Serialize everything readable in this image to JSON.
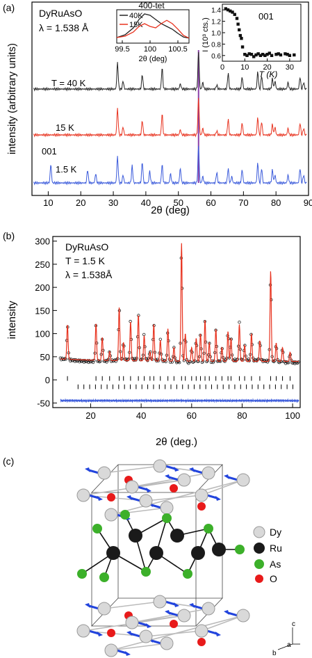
{
  "panel_a": {
    "label": "(a)",
    "compound": "DyRuAsO",
    "wavelength": "λ = 1.538 Å",
    "ylabel": "intensity (arbitrary units)",
    "xlabel": "2θ (deg)",
    "temp_labels": {
      "t40": "T = 40 K",
      "t15": "15 K",
      "t1_5": "1.5 K"
    },
    "peak_label": "001",
    "inset_left": {
      "title": "400-tet",
      "xlabel": "2θ (deg)",
      "legend": [
        "40K",
        "15K"
      ]
    },
    "inset_right": {
      "ylabel": "I (10³ cts.)",
      "xlabel": "T (K)",
      "label": "001"
    }
  },
  "panel_b": {
    "label": "(b)",
    "compound": "DyRuAsO",
    "temperature": "T = 1.5 K",
    "wavelength": "λ = 1.538Å",
    "ylabel": "intensity",
    "xlabel": "2θ (deg.)"
  },
  "panel_c": {
    "label": "(c)",
    "legend": [
      "Dy",
      "Ru",
      "As",
      "O"
    ],
    "axes": [
      "c",
      "a",
      "b"
    ]
  },
  "colors": {
    "black": "#222222",
    "red": "#e8321e",
    "blue": "#3b5bdb",
    "purple": "#8a3fa8",
    "Dy": "#d9d9d9",
    "Ru": "#1a1a1a",
    "As": "#3cb02a",
    "O": "#e81a1a",
    "spin": "#2244dd"
  },
  "chart_data": [
    {
      "type": "line",
      "panel": "a-main",
      "xlabel": "2θ (deg)",
      "ylabel": "intensity (arbitrary units)",
      "xlim": [
        5,
        90
      ],
      "xticks": [
        10,
        20,
        30,
        40,
        50,
        60,
        70,
        80,
        90
      ],
      "series": [
        {
          "name": "T = 40 K",
          "color": "#222222",
          "peaks": [
            [
              31.3,
              1.0
            ],
            [
              33.0,
              0.3
            ],
            [
              38.9,
              0.55
            ],
            [
              45.0,
              0.8
            ],
            [
              50.6,
              0.2
            ],
            [
              56.2,
              1.4
            ],
            [
              57.5,
              0.25
            ],
            [
              61.8,
              0.15
            ],
            [
              65.3,
              0.6
            ],
            [
              69.6,
              0.45
            ],
            [
              74.4,
              0.65
            ],
            [
              75.6,
              0.5
            ],
            [
              78.9,
              0.4
            ],
            [
              79.7,
              0.3
            ],
            [
              83.7,
              0.25
            ],
            [
              87.4,
              0.45
            ],
            [
              88.5,
              0.25
            ]
          ]
        },
        {
          "name": "15 K",
          "color": "#e8321e",
          "peaks": [
            [
              31.3,
              1.0
            ],
            [
              33.0,
              0.3
            ],
            [
              38.9,
              0.55
            ],
            [
              45.0,
              0.8
            ],
            [
              50.6,
              0.2
            ],
            [
              56.2,
              1.4
            ],
            [
              57.5,
              0.25
            ],
            [
              61.8,
              0.15
            ],
            [
              65.3,
              0.6
            ],
            [
              69.6,
              0.45
            ],
            [
              74.4,
              0.65
            ],
            [
              75.6,
              0.5
            ],
            [
              78.9,
              0.4
            ],
            [
              79.7,
              0.3
            ],
            [
              83.7,
              0.25
            ],
            [
              87.4,
              0.45
            ],
            [
              88.5,
              0.25
            ]
          ]
        },
        {
          "name": "1.5 K",
          "color": "#3b5bdb",
          "peaks": [
            [
              10.8,
              0.7
            ],
            [
              22.1,
              0.5
            ],
            [
              24.6,
              0.35
            ],
            [
              31.3,
              1.0
            ],
            [
              33.0,
              0.3
            ],
            [
              35.8,
              0.65
            ],
            [
              38.9,
              0.8
            ],
            [
              41.2,
              0.45
            ],
            [
              45.0,
              0.7
            ],
            [
              47.6,
              0.35
            ],
            [
              50.6,
              0.55
            ],
            [
              56.2,
              1.4
            ],
            [
              57.5,
              0.25
            ],
            [
              61.8,
              0.4
            ],
            [
              65.3,
              0.55
            ],
            [
              66.4,
              0.25
            ],
            [
              69.6,
              0.5
            ],
            [
              74.4,
              0.75
            ],
            [
              75.6,
              0.55
            ],
            [
              78.9,
              0.5
            ],
            [
              79.7,
              0.3
            ],
            [
              83.7,
              0.3
            ],
            [
              87.4,
              0.55
            ],
            [
              88.5,
              0.3
            ]
          ]
        }
      ]
    },
    {
      "type": "line",
      "panel": "a-inset-400tet",
      "xlabel": "2θ (deg)",
      "xlim": [
        99.4,
        100.7
      ],
      "xticks": [
        99.5,
        100.0,
        100.5
      ],
      "series": [
        {
          "name": "40K",
          "color": "#222222",
          "x": [
            99.4,
            99.55,
            99.7,
            99.8,
            99.9,
            100.0,
            100.1,
            100.2,
            100.3,
            100.4,
            100.5,
            100.6,
            100.7
          ],
          "y": [
            0.1,
            0.2,
            0.45,
            0.75,
            0.95,
            0.9,
            0.75,
            0.6,
            0.5,
            0.4,
            0.25,
            0.12,
            0.08
          ]
        },
        {
          "name": "15K",
          "color": "#e8321e",
          "x": [
            99.4,
            99.55,
            99.7,
            99.8,
            99.9,
            100.0,
            100.1,
            100.2,
            100.3,
            100.4,
            100.5,
            100.6,
            100.7
          ],
          "y": [
            0.1,
            0.15,
            0.3,
            0.5,
            0.6,
            0.5,
            0.45,
            0.6,
            0.72,
            0.6,
            0.4,
            0.18,
            0.08
          ]
        }
      ]
    },
    {
      "type": "scatter",
      "panel": "a-inset-001",
      "xlabel": "T (K)",
      "ylabel": "I (10³ cts.)",
      "xlim": [
        0,
        35
      ],
      "ylim": [
        0.5,
        1.5
      ],
      "xticks": [
        0,
        10,
        20,
        30
      ],
      "yticks": [
        0.6,
        0.8,
        1.0,
        1.2,
        1.4
      ],
      "x": [
        1.5,
        2.5,
        3.5,
        4.5,
        5.5,
        6.5,
        7.0,
        7.5,
        8.0,
        8.5,
        9.0,
        10,
        11,
        12,
        13,
        14,
        15,
        16,
        17,
        18,
        19,
        20,
        21,
        22,
        24,
        25,
        26,
        28,
        29,
        30,
        32
      ],
      "y": [
        1.42,
        1.4,
        1.38,
        1.36,
        1.32,
        1.25,
        1.15,
        1.05,
        0.95,
        0.9,
        0.75,
        0.62,
        0.6,
        0.63,
        0.62,
        0.58,
        0.61,
        0.63,
        0.6,
        0.62,
        0.6,
        0.62,
        0.64,
        0.6,
        0.62,
        0.63,
        0.61,
        0.63,
        0.62,
        0.6,
        0.61
      ]
    },
    {
      "type": "line",
      "panel": "b",
      "xlabel": "2θ (deg.)",
      "ylabel": "intensity",
      "xlim": [
        5,
        103
      ],
      "ylim": [
        -60,
        310
      ],
      "xticks": [
        20,
        40,
        60,
        80,
        100
      ],
      "yticks": [
        -50,
        0,
        50,
        100,
        150,
        200,
        250,
        300
      ],
      "background": 40,
      "peaks": [
        [
          10.8,
          115
        ],
        [
          22.1,
          120
        ],
        [
          24.6,
          90
        ],
        [
          27.5,
          60
        ],
        [
          31.3,
          155
        ],
        [
          33.0,
          80
        ],
        [
          35.8,
          125
        ],
        [
          38.9,
          140
        ],
        [
          41.2,
          95
        ],
        [
          43.5,
          60
        ],
        [
          45.0,
          120
        ],
        [
          47.6,
          85
        ],
        [
          50.6,
          110
        ],
        [
          53.0,
          70
        ],
        [
          56.0,
          295
        ],
        [
          57.5,
          100
        ],
        [
          60.0,
          70
        ],
        [
          61.8,
          90
        ],
        [
          63.5,
          100
        ],
        [
          65.3,
          130
        ],
        [
          67.0,
          80
        ],
        [
          69.6,
          110
        ],
        [
          72.0,
          70
        ],
        [
          74.4,
          105
        ],
        [
          75.6,
          90
        ],
        [
          78.9,
          120
        ],
        [
          81.0,
          75
        ],
        [
          83.7,
          100
        ],
        [
          87.0,
          85
        ],
        [
          91.3,
          235
        ],
        [
          93.5,
          80
        ],
        [
          96.0,
          70
        ],
        [
          99.0,
          60
        ]
      ],
      "series": [
        {
          "name": "observed",
          "color": "#222222"
        },
        {
          "name": "calculated",
          "color": "#e8321e"
        },
        {
          "name": "difference",
          "color": "#3b5bdb"
        }
      ]
    }
  ]
}
